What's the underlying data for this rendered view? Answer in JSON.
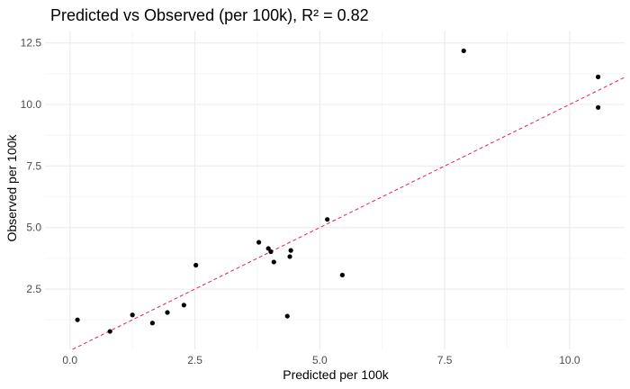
{
  "chart_data": {
    "type": "scatter",
    "title": "Predicted vs Observed (per 100k), R² = 0.82",
    "xlabel": "Predicted per 100k",
    "ylabel": "Observed per 100k",
    "xlim": [
      -0.5,
      11.1
    ],
    "ylim": [
      0.05,
      13.0
    ],
    "x_ticks": [
      0.0,
      2.5,
      5.0,
      7.5,
      10.0
    ],
    "x_tick_labels": [
      "0.0",
      "2.5",
      "5.0",
      "7.5",
      "10.0"
    ],
    "y_ticks": [
      2.5,
      5.0,
      7.5,
      10.0,
      12.5
    ],
    "y_tick_labels": [
      "2.5",
      "5.0",
      "7.5",
      "10.0",
      "12.5"
    ],
    "grid": true,
    "legend": "none",
    "point_color": "#000000",
    "reference_line": {
      "type": "identity",
      "slope": 1,
      "intercept": 0,
      "style": "dashed",
      "color": "#e6196e"
    },
    "points": [
      {
        "x": 0.15,
        "y": 1.25
      },
      {
        "x": 0.8,
        "y": 0.78
      },
      {
        "x": 1.25,
        "y": 1.45
      },
      {
        "x": 1.65,
        "y": 1.12
      },
      {
        "x": 1.95,
        "y": 1.55
      },
      {
        "x": 2.28,
        "y": 1.85
      },
      {
        "x": 2.52,
        "y": 3.47
      },
      {
        "x": 3.78,
        "y": 4.4
      },
      {
        "x": 3.97,
        "y": 4.15
      },
      {
        "x": 4.02,
        "y": 4.02
      },
      {
        "x": 4.08,
        "y": 3.6
      },
      {
        "x": 4.35,
        "y": 1.4
      },
      {
        "x": 4.4,
        "y": 3.82
      },
      {
        "x": 4.42,
        "y": 4.07
      },
      {
        "x": 5.15,
        "y": 5.33
      },
      {
        "x": 5.45,
        "y": 3.07
      },
      {
        "x": 7.88,
        "y": 12.18
      },
      {
        "x": 10.57,
        "y": 11.12
      },
      {
        "x": 10.57,
        "y": 9.88
      }
    ]
  }
}
